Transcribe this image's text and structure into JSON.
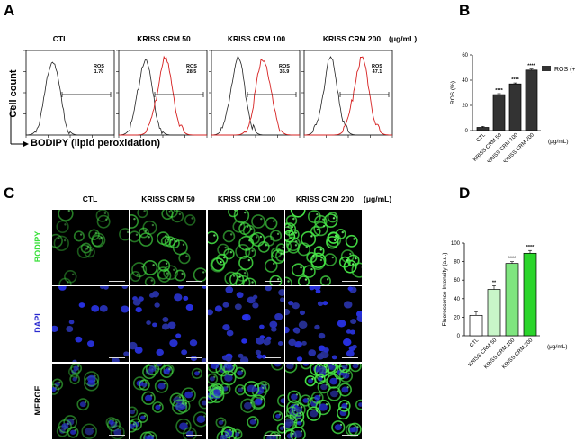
{
  "panels": {
    "A": "A",
    "B": "B",
    "C": "C",
    "D": "D"
  },
  "panel_a": {
    "conditions": [
      "CTL",
      "KRISS CRM 50",
      "KRISS CRM 100",
      "KRISS CRM 200"
    ],
    "unit": "(μg/mL)",
    "ros_label": "ROS",
    "ros_values": [
      "1.70",
      "28.5",
      "36.9",
      "47.1"
    ],
    "y_axis_label": "Cell count",
    "x_axis_label": "BODIPY (lipid peroxidation)"
  },
  "panel_c": {
    "conditions": [
      "CTL",
      "KRISS CRM 50",
      "KRISS CRM 100",
      "KRISS CRM 200"
    ],
    "unit": "(μg/mL)",
    "rows": [
      "BODIPY",
      "DAPI",
      "MERGE"
    ],
    "row_colors": [
      "#39e03a",
      "#2a2acf",
      "#000000"
    ]
  },
  "chart_data": [
    {
      "type": "bar",
      "panel": "B",
      "categories": [
        "CTL",
        "KRISS CRM 50",
        "KRISS CRM 100",
        "KRISS CRM 200"
      ],
      "values": [
        2.5,
        28.5,
        37,
        48
      ],
      "errors": [
        0.8,
        0.8,
        0.8,
        0.8
      ],
      "significance": [
        "",
        "****",
        "****",
        "****"
      ],
      "ylabel": "ROS (%)",
      "xunit": "(μg/mL)",
      "ylim": [
        0,
        60
      ],
      "yticks": [
        0,
        20,
        40,
        60
      ],
      "legend": "ROS (+)",
      "legend_position": "right",
      "bar_color": "#333333"
    },
    {
      "type": "bar",
      "panel": "D",
      "categories": [
        "CTL",
        "KRISS CRM 50",
        "KRISS CRM 100",
        "KRISS CRM 200"
      ],
      "values": [
        22,
        50,
        78,
        89
      ],
      "errors": [
        4,
        4,
        2,
        3
      ],
      "significance": [
        "",
        "**",
        "****",
        "****"
      ],
      "ylabel": "Fluorescence Intensity (a.u.)",
      "xunit": "(μg/mL)",
      "ylim": [
        0,
        100
      ],
      "yticks": [
        0,
        20,
        40,
        60,
        80,
        100
      ],
      "bar_colors": [
        "#ffffff",
        "#c8f5c8",
        "#7fe57f",
        "#2bd52b"
      ]
    }
  ]
}
